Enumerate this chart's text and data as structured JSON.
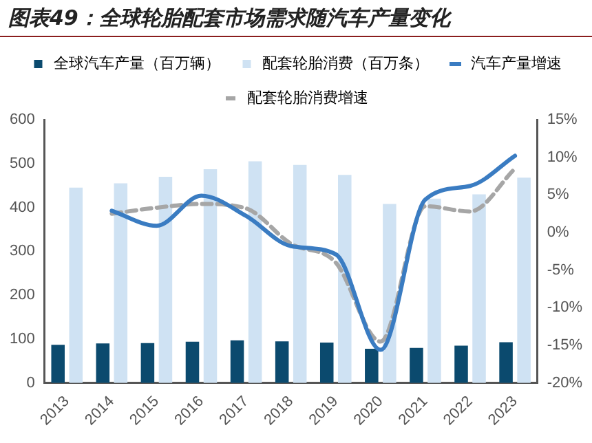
{
  "chart_data": {
    "type": "bar",
    "title": "图表49：全球轮胎配套市场需求随汽车产量变化",
    "categories": [
      "2013",
      "2014",
      "2015",
      "2016",
      "2017",
      "2018",
      "2019",
      "2020",
      "2021",
      "2022",
      "2023"
    ],
    "series": [
      {
        "name": "全球汽车产量（百万辆）",
        "color": "#0b4a6e",
        "values": [
          87,
          90,
          91,
          94,
          97,
          95,
          92,
          78,
          80,
          85,
          93
        ]
      },
      {
        "name": "配套轮胎消费（百万条）",
        "color": "#cfe2f3",
        "values": [
          445,
          455,
          470,
          487,
          505,
          497,
          474,
          408,
          420,
          430,
          468
        ]
      },
      {
        "name": "汽车产量增速",
        "type": "line",
        "axis": "y2",
        "color": "#3a7cc2",
        "line_style": "solid",
        "values": [
          null,
          2.9,
          0.9,
          4.9,
          2.2,
          -1.8,
          -2.9,
          -15.6,
          4.4,
          6.2,
          10.2
        ]
      },
      {
        "name": "配套轮胎消费增速",
        "type": "line",
        "axis": "y2",
        "color": "#a6a6a6",
        "line_style": "dashed",
        "values": [
          null,
          2.5,
          3.3,
          3.8,
          3.2,
          -1.5,
          -4.0,
          -14.5,
          3.5,
          2.8,
          8.5
        ]
      }
    ],
    "ylim": [
      0,
      600
    ],
    "yticks": [
      0,
      100,
      200,
      300,
      400,
      500,
      600
    ],
    "y2lim": [
      -20,
      15
    ],
    "y2ticks": [
      {
        "value": -20,
        "label": "-20%"
      },
      {
        "value": -15,
        "label": "-15%"
      },
      {
        "value": -10,
        "label": "-10%"
      },
      {
        "value": -5,
        "label": "-5%"
      },
      {
        "value": 0,
        "label": "0%"
      },
      {
        "value": 5,
        "label": "5%"
      },
      {
        "value": 10,
        "label": "10%"
      },
      {
        "value": 15,
        "label": "15%"
      }
    ],
    "legend": "top",
    "marker": "none"
  }
}
